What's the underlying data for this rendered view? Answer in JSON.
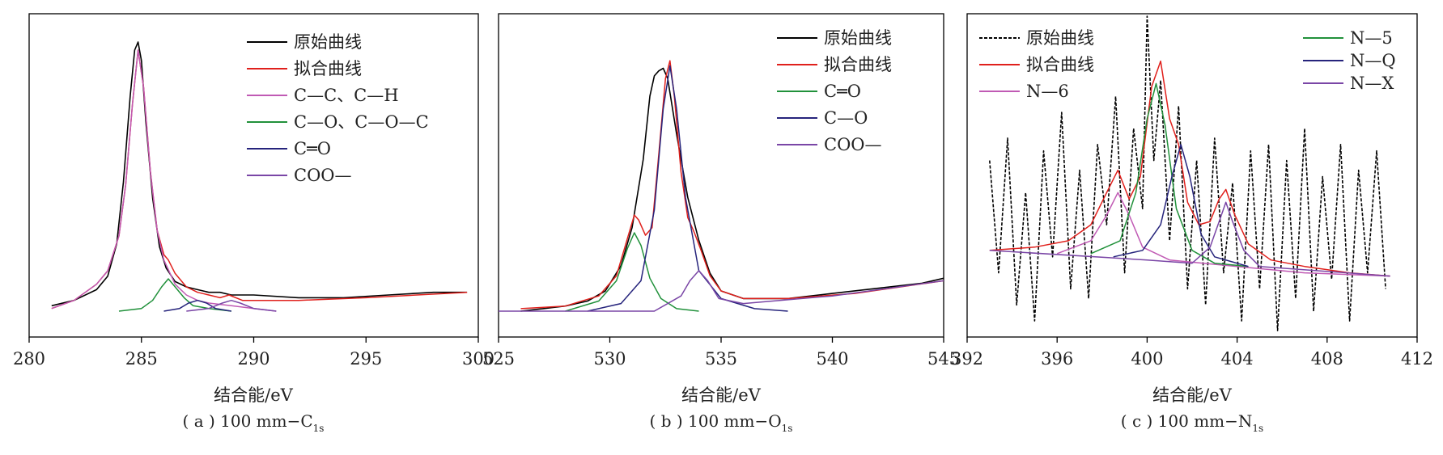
{
  "figure": {
    "xlabel": "结合能/eV",
    "panels": [
      {
        "prefix": "( a ) 100 mm−C",
        "sub": "1s"
      },
      {
        "prefix": "( b ) 100 mm−O",
        "sub": "1s"
      },
      {
        "prefix": "( c ) 100 mm−N",
        "sub": "1s"
      }
    ]
  },
  "chart_data": [
    {
      "type": "line",
      "title": "( a ) 100 mm−C1s",
      "xlabel": "结合能/eV",
      "xlim": [
        280,
        300
      ],
      "xticks": [
        280,
        285,
        290,
        295,
        300
      ],
      "ylim": [
        0,
        1
      ],
      "y_axis_labels": "none",
      "grid": false,
      "legend_position": "top-right",
      "colors": {
        "原始曲线": "#000000",
        "拟合曲线": "#e0201c",
        "C—C、C—H": "#c05ab4",
        "C—O、C—O—C": "#21913b",
        "C═O": "#26247c",
        "COO—": "#7a46a6"
      },
      "series": [
        {
          "name": "原始曲线",
          "style": "solid",
          "x": [
            281.0,
            282.0,
            283.0,
            283.5,
            283.9,
            284.2,
            284.5,
            284.7,
            284.85,
            285.0,
            285.2,
            285.5,
            285.8,
            286.1,
            286.5,
            287.0,
            287.5,
            288.0,
            288.5,
            289.0,
            290.0,
            292.0,
            294.0,
            296.0,
            298.0,
            299.5
          ],
          "y": [
            0.02,
            0.04,
            0.08,
            0.13,
            0.25,
            0.48,
            0.8,
            0.97,
            1.0,
            0.93,
            0.7,
            0.42,
            0.24,
            0.16,
            0.11,
            0.09,
            0.08,
            0.07,
            0.07,
            0.06,
            0.06,
            0.05,
            0.05,
            0.06,
            0.07,
            0.07
          ]
        },
        {
          "name": "拟合曲线",
          "style": "solid",
          "x": [
            281.0,
            282.0,
            283.0,
            283.5,
            284.0,
            284.3,
            284.6,
            284.85,
            285.1,
            285.4,
            285.7,
            286.0,
            286.2,
            286.5,
            287.0,
            287.5,
            288.0,
            288.5,
            288.9,
            289.5,
            290.5,
            292.0,
            295.0,
            299.5
          ],
          "y": [
            0.01,
            0.04,
            0.1,
            0.15,
            0.28,
            0.47,
            0.77,
            0.97,
            0.83,
            0.52,
            0.3,
            0.21,
            0.19,
            0.14,
            0.09,
            0.07,
            0.06,
            0.05,
            0.06,
            0.04,
            0.04,
            0.04,
            0.05,
            0.07
          ]
        },
        {
          "name": "C—C、C—H",
          "style": "solid",
          "x": [
            281.0,
            282.0,
            283.0,
            283.5,
            284.0,
            284.3,
            284.6,
            284.85,
            285.1,
            285.4,
            285.7,
            286.0,
            286.5,
            287.0,
            287.5,
            288.0,
            289.0,
            290.0,
            291.0
          ],
          "y": [
            0.01,
            0.04,
            0.1,
            0.15,
            0.28,
            0.47,
            0.77,
            0.97,
            0.83,
            0.52,
            0.3,
            0.19,
            0.1,
            0.06,
            0.04,
            0.03,
            0.02,
            0.01,
            0.0
          ]
        },
        {
          "name": "C—O、C—O—C",
          "style": "solid",
          "x": [
            284.0,
            285.0,
            285.5,
            285.9,
            286.2,
            286.5,
            286.9,
            287.3,
            288.0,
            289.0
          ],
          "y": [
            0.0,
            0.01,
            0.04,
            0.09,
            0.12,
            0.09,
            0.05,
            0.02,
            0.01,
            0.0
          ]
        },
        {
          "name": "C═O",
          "style": "solid",
          "x": [
            286.0,
            286.7,
            287.1,
            287.5,
            287.9,
            288.3,
            289.0
          ],
          "y": [
            0.0,
            0.01,
            0.03,
            0.04,
            0.03,
            0.01,
            0.0
          ]
        },
        {
          "name": "COO—",
          "style": "solid",
          "x": [
            287.0,
            288.0,
            288.6,
            289.0,
            289.4,
            290.0,
            291.0
          ],
          "y": [
            0.0,
            0.01,
            0.03,
            0.04,
            0.03,
            0.01,
            0.0
          ]
        }
      ]
    },
    {
      "type": "line",
      "title": "( b ) 100 mm−O1s",
      "xlabel": "结合能/eV",
      "xlim": [
        525,
        545
      ],
      "xticks": [
        525,
        530,
        535,
        540,
        545
      ],
      "ylim": [
        0,
        1
      ],
      "y_axis_labels": "none",
      "grid": false,
      "legend_position": "top-right",
      "colors": {
        "原始曲线": "#000000",
        "拟合曲线": "#e0201c",
        "C═O": "#21913b",
        "C—O": "#26247c",
        "COO—": "#7a46a6"
      },
      "series": [
        {
          "name": "原始曲线",
          "style": "solid",
          "x": [
            526.0,
            527.0,
            528.0,
            529.0,
            529.8,
            530.5,
            531.0,
            531.5,
            531.8,
            532.0,
            532.2,
            532.4,
            532.6,
            533.0,
            533.5,
            534.0,
            534.5,
            535.0,
            536.0,
            538.0,
            540.0,
            542.0,
            544.0,
            545.0
          ],
          "y": [
            0.0,
            0.01,
            0.02,
            0.04,
            0.08,
            0.18,
            0.33,
            0.6,
            0.85,
            0.93,
            0.95,
            0.96,
            0.92,
            0.7,
            0.45,
            0.28,
            0.15,
            0.08,
            0.05,
            0.05,
            0.07,
            0.09,
            0.11,
            0.13
          ]
        },
        {
          "name": "拟合曲线",
          "style": "solid",
          "x": [
            526.0,
            528.0,
            529.5,
            530.3,
            530.8,
            531.1,
            531.3,
            531.6,
            531.9,
            532.2,
            532.5,
            532.7,
            532.9,
            533.2,
            533.5,
            533.8,
            534.1,
            534.5,
            535.0,
            536.0,
            538.0,
            541.0,
            545.0
          ],
          "y": [
            0.01,
            0.02,
            0.06,
            0.14,
            0.29,
            0.38,
            0.36,
            0.3,
            0.33,
            0.62,
            0.92,
            0.99,
            0.85,
            0.55,
            0.37,
            0.31,
            0.24,
            0.14,
            0.08,
            0.05,
            0.05,
            0.07,
            0.12
          ]
        },
        {
          "name": "C═O",
          "style": "solid",
          "x": [
            528.0,
            529.5,
            530.3,
            530.8,
            531.1,
            531.4,
            531.8,
            532.3,
            533.0,
            534.0
          ],
          "y": [
            0.0,
            0.04,
            0.12,
            0.25,
            0.31,
            0.26,
            0.13,
            0.05,
            0.01,
            0.0
          ]
        },
        {
          "name": "C—O",
          "style": "solid",
          "x": [
            529.0,
            530.5,
            531.4,
            532.0,
            532.4,
            532.7,
            533.0,
            533.4,
            534.0,
            535.0,
            536.5,
            538.0
          ],
          "y": [
            0.0,
            0.03,
            0.12,
            0.4,
            0.8,
            0.97,
            0.8,
            0.45,
            0.16,
            0.05,
            0.01,
            0.0
          ]
        },
        {
          "name": "COO—",
          "style": "solid",
          "x": [
            525.0,
            530.0,
            532.0,
            533.2,
            533.6,
            534.0,
            534.4,
            534.9,
            536.0,
            540.0,
            545.0
          ],
          "y": [
            0.0,
            0.0,
            0.0,
            0.06,
            0.12,
            0.16,
            0.12,
            0.05,
            0.03,
            0.06,
            0.12
          ]
        }
      ]
    },
    {
      "type": "line",
      "title": "( c ) 100 mm−N1s",
      "xlabel": "结合能/eV",
      "xlim": [
        392,
        412
      ],
      "xticks": [
        392,
        396,
        400,
        404,
        408,
        412
      ],
      "ylim": [
        0,
        1
      ],
      "y_axis_labels": "none",
      "grid": false,
      "legend_position": "top",
      "colors": {
        "原始曲线": "#000000",
        "拟合曲线": "#e0201c",
        "N—6": "#c05ab4",
        "N—5": "#21913b",
        "N—Q": "#26247c",
        "N—X": "#7a46a6"
      },
      "series": [
        {
          "name": "原始曲线",
          "style": "dashed",
          "x": [
            393.0,
            393.4,
            393.8,
            394.2,
            394.6,
            395.0,
            395.4,
            395.8,
            396.2,
            396.6,
            397.0,
            397.4,
            397.8,
            398.2,
            398.6,
            399.0,
            399.4,
            399.8,
            400.0,
            400.3,
            400.6,
            401.0,
            401.4,
            401.8,
            402.2,
            402.6,
            403.0,
            403.4,
            403.8,
            404.2,
            404.6,
            405.0,
            405.4,
            405.8,
            406.2,
            406.6,
            407.0,
            407.4,
            407.8,
            408.2,
            408.6,
            409.0,
            409.4,
            409.8,
            410.2,
            410.6
          ],
          "y": [
            0.55,
            0.2,
            0.62,
            0.1,
            0.45,
            0.05,
            0.58,
            0.25,
            0.7,
            0.15,
            0.52,
            0.12,
            0.6,
            0.35,
            0.75,
            0.2,
            0.65,
            0.4,
            1.0,
            0.55,
            0.8,
            0.3,
            0.72,
            0.15,
            0.55,
            0.1,
            0.62,
            0.2,
            0.48,
            0.05,
            0.58,
            0.15,
            0.6,
            0.02,
            0.55,
            0.12,
            0.65,
            0.08,
            0.5,
            0.18,
            0.6,
            0.05,
            0.52,
            0.2,
            0.58,
            0.15
          ]
        },
        {
          "name": "拟合曲线",
          "style": "solid",
          "x": [
            393.0,
            395.0,
            396.5,
            397.5,
            398.2,
            398.7,
            399.2,
            399.7,
            400.2,
            400.6,
            401.0,
            401.4,
            401.8,
            402.3,
            402.8,
            403.2,
            403.5,
            403.9,
            404.5,
            405.5,
            407.0,
            409.0,
            410.8
          ],
          "y": [
            0.27,
            0.28,
            0.3,
            0.35,
            0.45,
            0.52,
            0.43,
            0.5,
            0.78,
            0.86,
            0.68,
            0.6,
            0.42,
            0.35,
            0.36,
            0.43,
            0.46,
            0.38,
            0.29,
            0.24,
            0.22,
            0.2,
            0.19
          ]
        },
        {
          "name": "N—6",
          "style": "solid",
          "x": [
            396.0,
            397.5,
            398.2,
            398.7,
            399.2,
            399.8,
            401.0,
            404.0,
            407.0,
            410.8
          ],
          "y": [
            0.26,
            0.3,
            0.38,
            0.45,
            0.38,
            0.28,
            0.24,
            0.22,
            0.2,
            0.19
          ]
        },
        {
          "name": "N—5",
          "style": "solid",
          "x": [
            397.5,
            398.8,
            399.5,
            400.0,
            400.4,
            400.8,
            401.3,
            402.0,
            403.0,
            404.5
          ],
          "y": [
            0.26,
            0.3,
            0.45,
            0.68,
            0.79,
            0.66,
            0.4,
            0.27,
            0.23,
            0.22
          ]
        },
        {
          "name": "N—Q",
          "style": "solid",
          "x": [
            398.5,
            399.8,
            400.6,
            401.1,
            401.5,
            401.9,
            402.4,
            403.0,
            404.5
          ],
          "y": [
            0.25,
            0.27,
            0.35,
            0.5,
            0.6,
            0.5,
            0.32,
            0.25,
            0.22
          ]
        },
        {
          "name": "N—X",
          "style": "solid",
          "x": [
            393.0,
            400.0,
            402.0,
            402.8,
            403.2,
            403.5,
            403.8,
            404.3,
            405.0,
            410.8
          ],
          "y": [
            0.27,
            0.24,
            0.23,
            0.28,
            0.36,
            0.42,
            0.36,
            0.27,
            0.22,
            0.19
          ]
        }
      ]
    }
  ]
}
